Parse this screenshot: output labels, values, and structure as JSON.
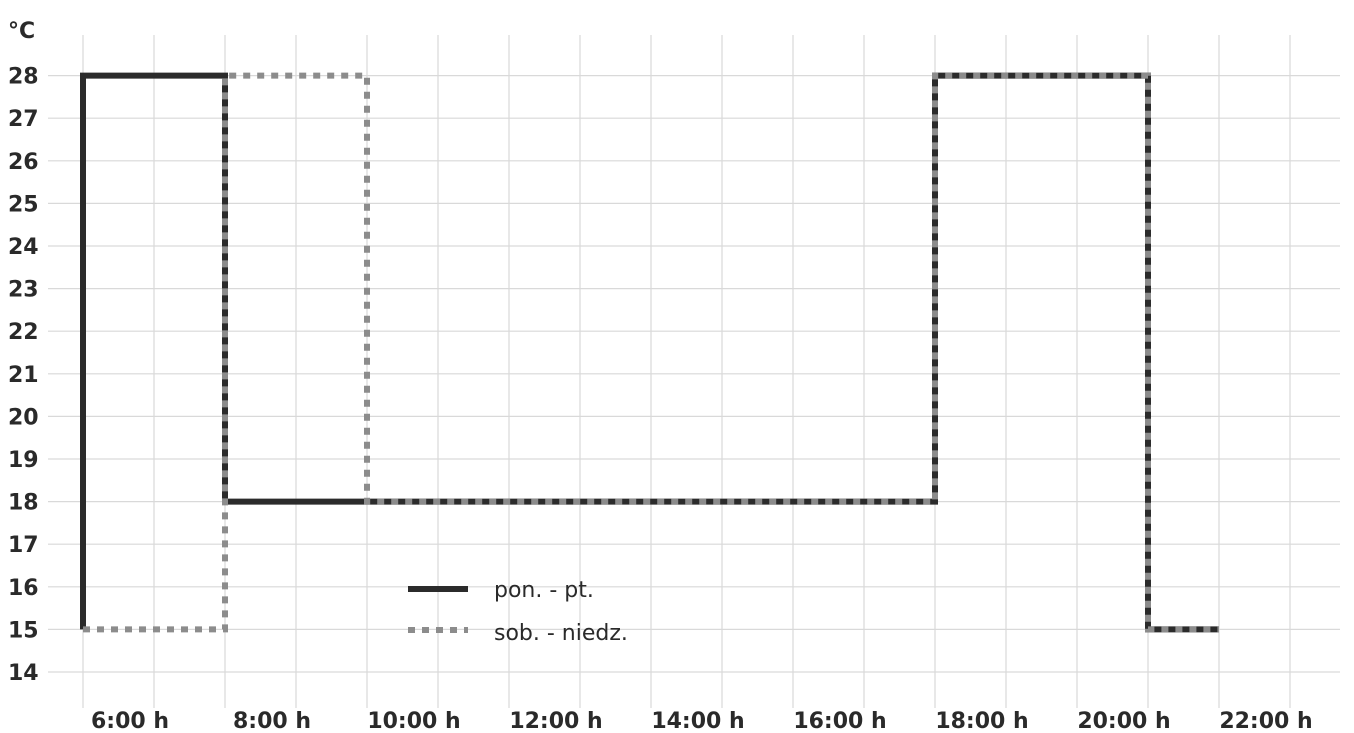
{
  "chart_data": {
    "type": "line",
    "step": true,
    "ylabel": "°C",
    "ylim": [
      14,
      28
    ],
    "yticks": [
      14,
      15,
      16,
      17,
      18,
      19,
      20,
      21,
      22,
      23,
      24,
      25,
      26,
      27,
      28
    ],
    "xlim": [
      6,
      23
    ],
    "x_tick_values": [
      6,
      8,
      10,
      12,
      14,
      16,
      18,
      20,
      22
    ],
    "x_tick_labels": [
      "6:00 h",
      "8:00 h",
      "10:00 h",
      "12:00 h",
      "14:00 h",
      "16:00 h",
      "18:00 h",
      "20:00 h",
      "22:00 h"
    ],
    "grid": true,
    "legend_position": "lower-left",
    "series": [
      {
        "name": "pon. - pt.",
        "style": "solid",
        "color": "#2b2b2b",
        "points": [
          [
            6,
            15
          ],
          [
            6,
            28
          ],
          [
            8,
            28
          ],
          [
            8,
            18
          ],
          [
            18,
            18
          ],
          [
            18,
            28
          ],
          [
            21,
            28
          ],
          [
            21,
            15
          ],
          [
            22,
            15
          ]
        ]
      },
      {
        "name": "sob. - niedz.",
        "style": "dotted",
        "color": "#8c8c8c",
        "points": [
          [
            6,
            15
          ],
          [
            8,
            15
          ],
          [
            8,
            28
          ],
          [
            10,
            28
          ],
          [
            10,
            18
          ],
          [
            18,
            18
          ],
          [
            18,
            28
          ],
          [
            21,
            28
          ],
          [
            21,
            15
          ],
          [
            22,
            15
          ]
        ]
      }
    ]
  }
}
